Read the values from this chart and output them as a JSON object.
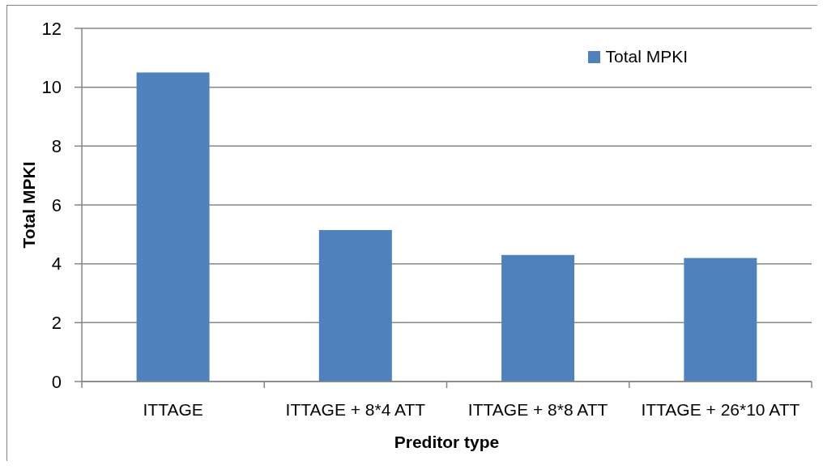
{
  "chart_data": {
    "type": "bar",
    "xlabel": "Preditor type",
    "ylabel": "Total MPKI",
    "categories": [
      "ITTAGE",
      "ITTAGE + 8*4 ATT",
      "ITTAGE + 8*8 ATT",
      "ITTAGE + 26*10 ATT"
    ],
    "series": [
      {
        "name": "Total MPKI",
        "color": "#4f81bd",
        "values": [
          10.5,
          5.15,
          4.3,
          4.2
        ]
      }
    ],
    "ylim": [
      0,
      12
    ],
    "yticks": [
      0,
      2,
      4,
      6,
      8,
      10,
      12
    ],
    "grid": "y",
    "legend": "top right"
  }
}
